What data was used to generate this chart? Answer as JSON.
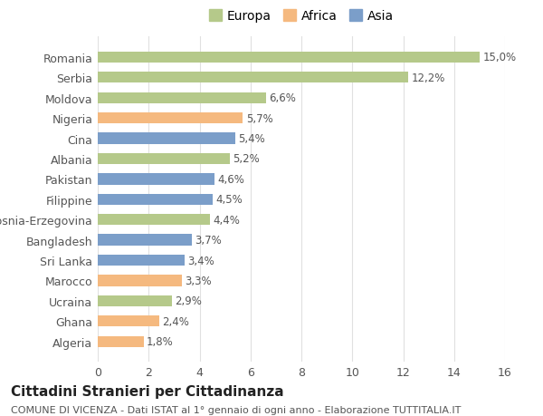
{
  "countries": [
    "Algeria",
    "Ghana",
    "Ucraina",
    "Marocco",
    "Sri Lanka",
    "Bangladesh",
    "Bosnia-Erzegovina",
    "Filippine",
    "Pakistan",
    "Albania",
    "Cina",
    "Nigeria",
    "Moldova",
    "Serbia",
    "Romania"
  ],
  "values": [
    1.8,
    2.4,
    2.9,
    3.3,
    3.4,
    3.7,
    4.4,
    4.5,
    4.6,
    5.2,
    5.4,
    5.7,
    6.6,
    12.2,
    15.0
  ],
  "labels": [
    "1,8%",
    "2,4%",
    "2,9%",
    "3,3%",
    "3,4%",
    "3,7%",
    "4,4%",
    "4,5%",
    "4,6%",
    "5,2%",
    "5,4%",
    "5,7%",
    "6,6%",
    "12,2%",
    "15,0%"
  ],
  "continents": [
    "Africa",
    "Africa",
    "Europa",
    "Africa",
    "Asia",
    "Asia",
    "Europa",
    "Asia",
    "Asia",
    "Europa",
    "Asia",
    "Africa",
    "Europa",
    "Europa",
    "Europa"
  ],
  "colors": {
    "Europa": "#b5c98a",
    "Africa": "#f5b97f",
    "Asia": "#7b9ec9"
  },
  "legend_labels": [
    "Europa",
    "Africa",
    "Asia"
  ],
  "xlim": [
    0,
    16
  ],
  "xticks": [
    0,
    2,
    4,
    6,
    8,
    10,
    12,
    14,
    16
  ],
  "title": "Cittadini Stranieri per Cittadinanza",
  "subtitle": "COMUNE DI VICENZA - Dati ISTAT al 1° gennaio di ogni anno - Elaborazione TUTTITALIA.IT",
  "background_color": "#ffffff",
  "grid_color": "#e0e0e0",
  "bar_height": 0.55,
  "label_fontsize": 8.5,
  "tick_fontsize": 9,
  "title_fontsize": 11,
  "subtitle_fontsize": 8,
  "legend_fontsize": 10
}
